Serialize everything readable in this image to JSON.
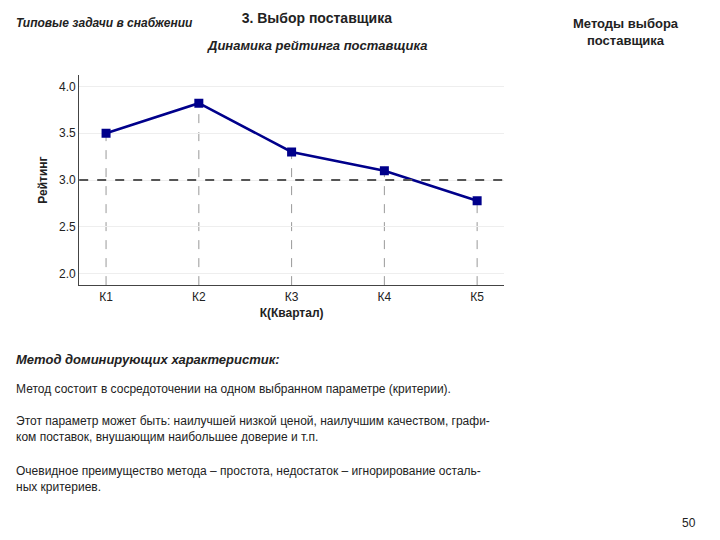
{
  "chart_data": {
    "type": "line",
    "title": "3. Выбор поставщика",
    "subtitle": "Динамика рейтинга поставщика",
    "xlabel": "К(Квартал)",
    "ylabel": "Рейтинг",
    "categories": [
      "К1",
      "К2",
      "К3",
      "К4",
      "К5"
    ],
    "values": [
      3.5,
      3.82,
      3.3,
      3.1,
      2.78
    ],
    "color": "#00008B",
    "marker": "square",
    "line_style": "solid",
    "reference_line": 3.0,
    "ylim": [
      1.88,
      4.12
    ],
    "yticks": [
      {
        "value": 2.0,
        "label": "2.0"
      },
      2.5,
      {
        "value": 3.0,
        "label": "3.0"
      },
      3.5,
      {
        "value": 4.0,
        "label": "4.0"
      }
    ],
    "grid": true,
    "annotations": [
      "Типовые задачи в снабжении",
      "Методы выбора\nпоставщика",
      "Метод доминирующих характеристик:",
      "Метод состоит в сосредоточении на одном выбранном параметре (критерии).",
      "Этот параметр может быть: наилучшей низкой ценой, наилучшим качеством, графи-\nком поставок, внушающим наибольшее доверие и т.п.",
      "Очевидное преимущество метода – простота, недостаток – игнорирование осталь-\nных критериев.",
      "50"
    ]
  }
}
